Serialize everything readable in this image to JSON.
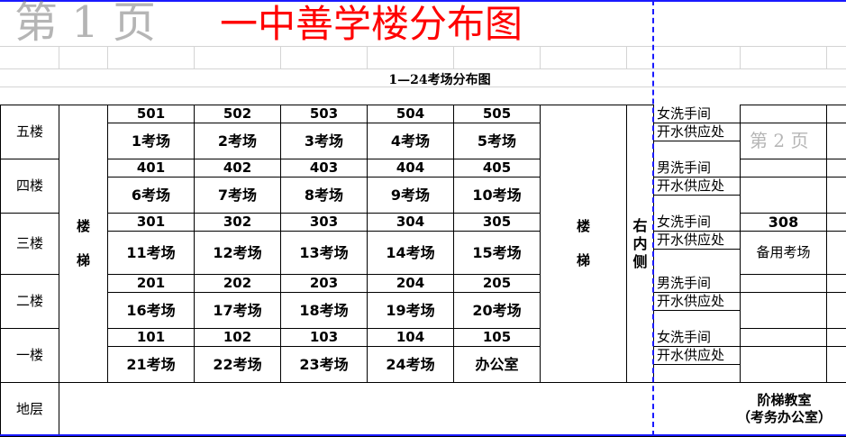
{
  "title": "一中善学楼分布图",
  "subtitle": "1—24考场分布图",
  "watermarks": [
    "第 1 页",
    "第 2 页"
  ],
  "stairs_label": "楼\n\n梯",
  "right_side_label": "右\n内\n侧",
  "floors": [
    {
      "label": "五楼",
      "rooms": [
        {
          "number": "501",
          "name": "1考场"
        },
        {
          "number": "502",
          "name": "2考场"
        },
        {
          "number": "503",
          "name": "3考场"
        },
        {
          "number": "504",
          "name": "4考场"
        },
        {
          "number": "505",
          "name": "5考场"
        }
      ],
      "facilities": [
        "女洗手间",
        "开水供应处"
      ]
    },
    {
      "label": "四楼",
      "rooms": [
        {
          "number": "401",
          "name": "6考场"
        },
        {
          "number": "402",
          "name": "7考场"
        },
        {
          "number": "403",
          "name": "8考场"
        },
        {
          "number": "404",
          "name": "9考场"
        },
        {
          "number": "405",
          "name": "10考场"
        }
      ],
      "facilities": [
        "男洗手间",
        "开水供应处"
      ]
    },
    {
      "label": "三楼",
      "rooms": [
        {
          "number": "301",
          "name": "11考场"
        },
        {
          "number": "302",
          "name": "12考场"
        },
        {
          "number": "303",
          "name": "13考场"
        },
        {
          "number": "304",
          "name": "14考场"
        },
        {
          "number": "305",
          "name": "15考场"
        }
      ],
      "facilities": [
        "女洗手间",
        "开水供应处"
      ],
      "extra_room": {
        "number": "308",
        "name": "备用考场"
      }
    },
    {
      "label": "二楼",
      "rooms": [
        {
          "number": "201",
          "name": "16考场"
        },
        {
          "number": "202",
          "name": "17考场"
        },
        {
          "number": "203",
          "name": "18考场"
        },
        {
          "number": "204",
          "name": "19考场"
        },
        {
          "number": "205",
          "name": "20考场"
        }
      ],
      "facilities": [
        "男洗手间",
        "开水供应处"
      ]
    },
    {
      "label": "一楼",
      "rooms": [
        {
          "number": "101",
          "name": "21考场"
        },
        {
          "number": "102",
          "name": "22考场"
        },
        {
          "number": "103",
          "name": "23考场"
        },
        {
          "number": "104",
          "name": "24考场"
        },
        {
          "number": "105",
          "name": "办公室"
        }
      ],
      "facilities": [
        "女洗手间",
        "开水供应处"
      ]
    }
  ],
  "ground": {
    "label": "地层",
    "room": "阶梯教室\n（考务办公室）"
  }
}
